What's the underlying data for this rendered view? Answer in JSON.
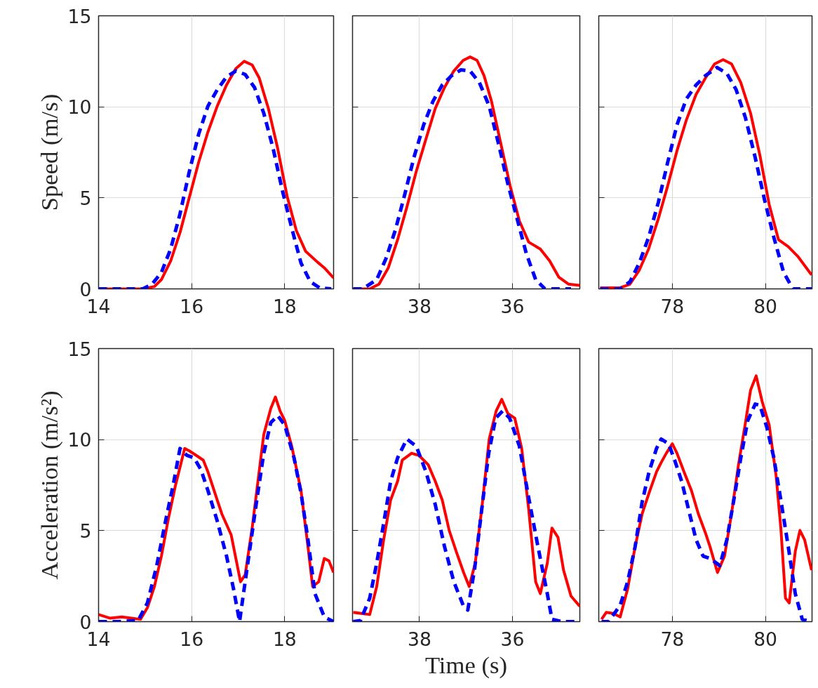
{
  "chart_data": [
    {
      "type": "line",
      "ylabel": "Speed (m/s)",
      "xlim": [
        14,
        19.05
      ],
      "xticks": [
        14,
        16,
        18
      ],
      "ylim": [
        0,
        15
      ],
      "yticks": [
        0,
        5,
        10,
        15
      ],
      "grid": true,
      "series": [
        {
          "color": "#ff0000",
          "line_style": "solid",
          "x": [
            14.0,
            14.95,
            15.2,
            15.35,
            15.55,
            15.75,
            15.95,
            16.15,
            16.35,
            16.55,
            16.75,
            16.95,
            17.13,
            17.3,
            17.45,
            17.65,
            17.85,
            18.05,
            18.25,
            18.45,
            18.7,
            18.85,
            19.05
          ],
          "values": [
            0,
            0,
            0.13,
            0.51,
            1.54,
            3.09,
            5.02,
            6.95,
            8.62,
            10.04,
            11.2,
            12.1,
            12.5,
            12.3,
            11.6,
            9.9,
            7.7,
            5.1,
            3.2,
            2.06,
            1.48,
            1.16,
            0.6
          ]
        },
        {
          "color": "#0000ff",
          "line_style": "dashed",
          "x": [
            14.0,
            14.95,
            15.15,
            15.35,
            15.55,
            15.75,
            15.95,
            16.15,
            16.35,
            16.55,
            16.75,
            16.95,
            17.15,
            17.35,
            17.55,
            17.75,
            17.95,
            18.15,
            18.35,
            18.55,
            18.75,
            19.0
          ],
          "values": [
            0,
            0,
            0.26,
            0.9,
            2.2,
            4.12,
            6.44,
            8.49,
            10.04,
            10.94,
            11.65,
            11.97,
            11.78,
            11.07,
            9.65,
            7.72,
            5.4,
            3.35,
            1.42,
            0.39,
            0.06,
            0
          ]
        }
      ]
    },
    {
      "type": "line",
      "xlim": [
        39.44,
        34.55
      ],
      "xticks": [
        38,
        36
      ],
      "ylim": [
        0,
        15
      ],
      "yticks": [
        0,
        5,
        10,
        15
      ],
      "grid": true,
      "tick_labels": "x",
      "series": [
        {
          "color": "#ff0000",
          "line_style": "solid",
          "x": [
            39.425,
            39.07,
            38.87,
            38.67,
            38.47,
            38.27,
            38.07,
            37.86,
            37.66,
            37.46,
            37.26,
            37.06,
            36.91,
            36.76,
            36.61,
            36.45,
            36.25,
            36.05,
            35.85,
            35.65,
            35.4,
            35.2,
            35.0,
            34.79,
            34.55
          ],
          "values": [
            0,
            0,
            0.26,
            1.16,
            2.7,
            4.5,
            6.44,
            8.24,
            9.91,
            11.07,
            11.97,
            12.55,
            12.74,
            12.55,
            11.71,
            10.3,
            7.98,
            5.66,
            3.73,
            2.57,
            2.19,
            1.54,
            0.64,
            0.26,
            0.19
          ]
        },
        {
          "color": "#0000ff",
          "line_style": "dashed",
          "x": [
            39.425,
            39.22,
            38.92,
            38.72,
            38.52,
            38.32,
            38.12,
            37.91,
            37.71,
            37.51,
            37.31,
            37.11,
            36.91,
            36.71,
            36.5,
            36.3,
            36.1,
            35.9,
            35.7,
            35.5,
            35.3,
            34.74
          ],
          "values": [
            0,
            0,
            0.51,
            1.67,
            3.22,
            5.15,
            7.21,
            9.01,
            10.3,
            11.2,
            11.71,
            12.03,
            11.97,
            11.33,
            10.04,
            7.98,
            5.79,
            3.86,
            1.93,
            0.51,
            0,
            0
          ]
        }
      ]
    },
    {
      "type": "line",
      "xlim": [
        76.42,
        81.0
      ],
      "xticks": [
        78,
        80
      ],
      "ylim": [
        0,
        15
      ],
      "yticks": [
        0,
        5,
        10,
        15
      ],
      "grid": true,
      "tick_labels": "x",
      "series": [
        {
          "color": "#ff0000",
          "line_style": "solid",
          "x": [
            76.45,
            76.88,
            77.09,
            77.29,
            77.49,
            77.7,
            77.9,
            78.1,
            78.3,
            78.51,
            78.71,
            78.91,
            79.09,
            79.27,
            79.47,
            79.68,
            79.88,
            80.08,
            80.28,
            80.49,
            80.69,
            80.99
          ],
          "values": [
            0.06,
            0.06,
            0.26,
            1.03,
            2.19,
            3.86,
            5.66,
            7.59,
            9.27,
            10.68,
            11.58,
            12.36,
            12.59,
            12.36,
            11.33,
            9.65,
            7.34,
            4.63,
            2.7,
            2.32,
            1.8,
            0.77
          ]
        },
        {
          "color": "#0000ff",
          "line_style": "dashed",
          "x": [
            76.45,
            76.88,
            77.09,
            77.29,
            77.49,
            77.7,
            77.9,
            78.1,
            78.3,
            78.51,
            78.71,
            78.96,
            79.17,
            79.37,
            79.57,
            79.78,
            79.98,
            80.18,
            80.39,
            80.59,
            80.99
          ],
          "values": [
            0,
            0,
            0.39,
            1.42,
            2.83,
            4.76,
            6.95,
            9.01,
            10.43,
            11.2,
            11.71,
            12.16,
            11.84,
            10.94,
            9.4,
            7.21,
            4.89,
            2.83,
            0.9,
            0,
            0
          ]
        }
      ]
    },
    {
      "type": "line",
      "ylabel": "Acceleration (m/s²)",
      "xlim": [
        14,
        19.05
      ],
      "xticks": [
        14,
        16,
        18
      ],
      "ylim": [
        0,
        15
      ],
      "yticks": [
        0,
        5,
        10,
        15
      ],
      "grid": true,
      "series": [
        {
          "color": "#ff0000",
          "line_style": "solid",
          "x": [
            14.0,
            14.25,
            14.5,
            14.7,
            14.9,
            15.05,
            15.2,
            15.35,
            15.5,
            15.65,
            15.75,
            15.85,
            15.95,
            16.1,
            16.25,
            16.35,
            16.45,
            16.55,
            16.65,
            16.85,
            17.05,
            17.15,
            17.3,
            17.45,
            17.55,
            17.7,
            17.8,
            17.9,
            18.0,
            18.15,
            18.35,
            18.5,
            18.6,
            18.73,
            18.85,
            18.95,
            19.05
          ],
          "values": [
            0.39,
            0.19,
            0.26,
            0.19,
            0.13,
            0.77,
            1.93,
            3.6,
            5.66,
            7.46,
            8.48,
            9.51,
            9.38,
            9.13,
            8.87,
            8.23,
            7.46,
            6.68,
            5.91,
            4.76,
            2.19,
            2.57,
            5.14,
            8.23,
            10.28,
            11.7,
            12.34,
            11.57,
            11.05,
            9.64,
            7.2,
            4.11,
            1.93,
            2.19,
            3.47,
            3.34,
            2.7
          ]
        },
        {
          "color": "#0000ff",
          "line_style": "dashed",
          "x": [
            14,
            14.4,
            14.85,
            15.05,
            15.25,
            15.45,
            15.6,
            15.75,
            15.9,
            16.05,
            16.2,
            16.35,
            16.55,
            16.75,
            16.9,
            17.03,
            17.1,
            17.25,
            17.4,
            17.55,
            17.7,
            17.85,
            18.0,
            18.2,
            18.35,
            18.5,
            18.65,
            18.85,
            19.05
          ],
          "values": [
            0,
            0,
            0.06,
            1.03,
            3.08,
            5.66,
            7.46,
            9.51,
            9.13,
            9.0,
            8.35,
            7.2,
            5.53,
            3.6,
            1.8,
            0,
            1.29,
            3.98,
            6.68,
            9.25,
            10.93,
            11.31,
            10.8,
            9.0,
            7.07,
            4.5,
            1.54,
            0.26,
            0
          ]
        }
      ]
    },
    {
      "type": "line",
      "xlabel": "Time (s)",
      "xlim": [
        39.44,
        34.55
      ],
      "xticks": [
        38,
        36
      ],
      "ylim": [
        0,
        15
      ],
      "yticks": [
        0,
        5,
        10,
        15
      ],
      "grid": true,
      "tick_labels": "x",
      "series": [
        {
          "color": "#ff0000",
          "line_style": "solid",
          "x": [
            39.425,
            39.07,
            38.92,
            38.77,
            38.62,
            38.47,
            38.37,
            38.17,
            38.01,
            37.81,
            37.66,
            37.51,
            37.36,
            37.21,
            37.05,
            36.93,
            36.8,
            36.65,
            36.5,
            36.35,
            36.23,
            36.1,
            35.95,
            35.8,
            35.65,
            35.5,
            35.4,
            35.25,
            35.15,
            35.02,
            34.9,
            34.74,
            34.55
          ],
          "values": [
            0.51,
            0.39,
            1.93,
            4.5,
            6.68,
            7.71,
            8.87,
            9.25,
            9.13,
            8.61,
            7.71,
            6.68,
            5.01,
            3.86,
            2.7,
            1.93,
            3.21,
            6.43,
            10.03,
            11.57,
            12.21,
            11.44,
            11.18,
            9.51,
            6.17,
            2.19,
            1.54,
            3.21,
            5.14,
            4.63,
            2.83,
            1.41,
            0.84
          ]
        },
        {
          "color": "#0000ff",
          "line_style": "dashed",
          "x": [
            39.425,
            39.27,
            39.07,
            38.92,
            38.77,
            38.62,
            38.47,
            38.27,
            38.07,
            37.86,
            37.66,
            37.46,
            37.26,
            37.06,
            36.96,
            36.81,
            36.66,
            36.51,
            36.36,
            36.21,
            36.06,
            35.85,
            35.65,
            35.45,
            35.25,
            35.15,
            34.94,
            34.55
          ],
          "values": [
            0,
            0.06,
            1.29,
            3.21,
            5.4,
            7.71,
            9.0,
            10.03,
            9.64,
            8.23,
            6.43,
            4.11,
            2.19,
            0.9,
            0.64,
            2.96,
            6.17,
            9.25,
            11.18,
            11.57,
            11.18,
            9.64,
            6.81,
            4.11,
            1.54,
            0.13,
            0,
            0
          ]
        }
      ]
    },
    {
      "type": "line",
      "xlim": [
        76.42,
        81.0
      ],
      "xticks": [
        78,
        80
      ],
      "ylim": [
        0,
        15
      ],
      "yticks": [
        0,
        5,
        10,
        15
      ],
      "grid": true,
      "tick_labels": "x",
      "series": [
        {
          "color": "#ff0000",
          "line_style": "solid",
          "x": [
            76.48,
            76.58,
            76.73,
            76.88,
            77.04,
            77.2,
            77.35,
            77.5,
            77.66,
            77.76,
            77.87,
            78.0,
            78.1,
            78.25,
            78.41,
            78.56,
            78.71,
            78.81,
            78.97,
            79.12,
            79.27,
            79.42,
            79.57,
            79.68,
            79.8,
            79.93,
            80.08,
            80.23,
            80.33,
            80.43,
            80.51,
            80.64,
            80.74,
            80.84,
            80.99
          ],
          "values": [
            0.13,
            0.51,
            0.45,
            0.26,
            1.8,
            4.11,
            5.91,
            7.07,
            8.23,
            8.74,
            9.25,
            9.77,
            9.25,
            8.23,
            7.2,
            5.91,
            4.88,
            4.11,
            2.7,
            3.6,
            5.91,
            8.61,
            10.93,
            12.72,
            13.5,
            12.08,
            10.8,
            7.97,
            5.14,
            1.29,
            1.03,
            3.86,
            5.01,
            4.5,
            2.83
          ]
        },
        {
          "color": "#0000ff",
          "line_style": "dashed",
          "x": [
            76.48,
            76.63,
            76.88,
            77.04,
            77.2,
            77.35,
            77.5,
            77.66,
            77.76,
            77.92,
            78.05,
            78.2,
            78.36,
            78.51,
            78.66,
            78.81,
            79.02,
            79.17,
            79.32,
            79.47,
            79.62,
            79.78,
            79.88,
            80.03,
            80.18,
            80.33,
            80.49,
            80.64,
            80.79,
            80.99
          ],
          "values": [
            0,
            0,
            0.9,
            2.19,
            4.11,
            6.55,
            8.23,
            9.51,
            10.03,
            9.77,
            8.87,
            7.71,
            6.04,
            4.5,
            3.6,
            3.47,
            3.08,
            4.5,
            6.68,
            8.99,
            11.05,
            11.95,
            11.89,
            10.67,
            9.0,
            6.68,
            4.11,
            1.54,
            0.13,
            0
          ]
        }
      ]
    }
  ]
}
